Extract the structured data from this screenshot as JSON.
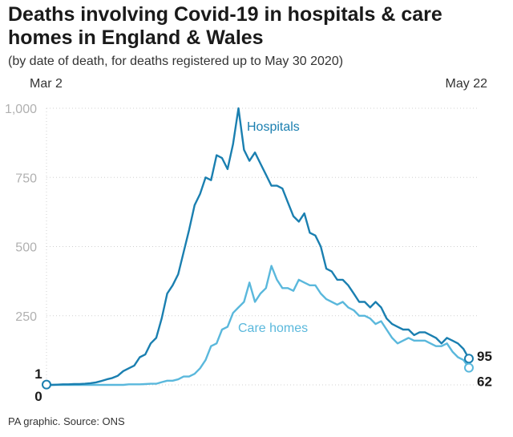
{
  "title": "Deaths involving Covid-19 in hospitals & care homes in England & Wales",
  "subtitle": "(by date of death, for deaths registered up to May 30 2020)",
  "source": "PA graphic. Source: ONS",
  "colors": {
    "hospitals": "#1a7fb0",
    "care_homes": "#5ab8dc",
    "grid": "#d0d0d0"
  },
  "chart_data": {
    "type": "line",
    "title": "Deaths involving Covid-19 in hospitals & care homes in England & Wales",
    "xlabel": "",
    "ylabel": "",
    "x_start_label": "Mar 2",
    "x_end_label": "May 22",
    "ylim": [
      0,
      1000
    ],
    "yticks": [
      {
        "value": 1000,
        "label": "1,000"
      },
      {
        "value": 750,
        "label": "750"
      },
      {
        "value": 500,
        "label": "500"
      },
      {
        "value": 250,
        "label": "250"
      }
    ],
    "start_labels": {
      "top": "1",
      "bottom": "0"
    },
    "series": [
      {
        "name": "Hospitals",
        "end_label": "95",
        "values": [
          1,
          0,
          1,
          2,
          2,
          3,
          3,
          4,
          6,
          9,
          14,
          20,
          25,
          33,
          50,
          60,
          70,
          100,
          110,
          150,
          170,
          240,
          330,
          360,
          400,
          480,
          560,
          650,
          690,
          750,
          740,
          830,
          820,
          780,
          870,
          1000,
          850,
          810,
          840,
          800,
          760,
          720,
          720,
          710,
          660,
          610,
          590,
          620,
          550,
          540,
          500,
          420,
          410,
          380,
          380,
          360,
          330,
          300,
          300,
          280,
          300,
          280,
          240,
          220,
          210,
          200,
          200,
          180,
          190,
          190,
          180,
          170,
          150,
          170,
          160,
          150,
          130,
          95
        ]
      },
      {
        "name": "Care homes",
        "end_label": "62",
        "values": [
          0,
          0,
          0,
          0,
          0,
          0,
          0,
          0,
          0,
          0,
          0,
          0,
          0,
          0,
          0,
          2,
          2,
          2,
          3,
          4,
          4,
          10,
          15,
          15,
          20,
          30,
          30,
          40,
          60,
          90,
          140,
          150,
          200,
          210,
          260,
          280,
          300,
          370,
          300,
          330,
          350,
          430,
          380,
          350,
          350,
          340,
          380,
          370,
          360,
          360,
          330,
          310,
          300,
          290,
          300,
          280,
          270,
          250,
          250,
          240,
          220,
          230,
          200,
          170,
          150,
          160,
          170,
          160,
          160,
          160,
          150,
          140,
          140,
          150,
          120,
          100,
          90,
          62
        ]
      }
    ]
  }
}
